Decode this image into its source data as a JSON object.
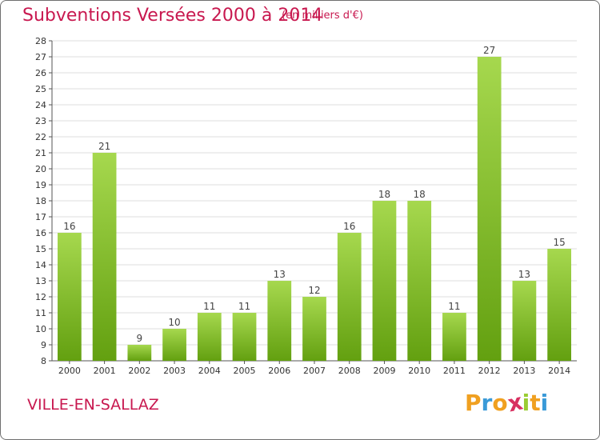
{
  "header": {
    "title": "Subventions Versées 2000 à 2014",
    "unit": "(en milliers d'€)"
  },
  "footer": {
    "commune": "VILLE-EN-SALLAZ",
    "brand_letters": [
      {
        "char": "P",
        "color": "#f0a020"
      },
      {
        "char": "r",
        "color": "#3a9ad8"
      },
      {
        "char": "o",
        "color": "#f0a020"
      },
      {
        "char": "x",
        "color": "#d83060"
      },
      {
        "char": "i",
        "color": "#9acd32"
      },
      {
        "char": "t",
        "color": "#f0a020"
      },
      {
        "char": "i",
        "color": "#3a9ad8"
      }
    ]
  },
  "colors": {
    "bar_top": "#a6d84e",
    "bar_bottom": "#63a010",
    "title": "#c8184f"
  },
  "chart_data": {
    "type": "bar",
    "categories": [
      "2000",
      "2001",
      "2002",
      "2003",
      "2004",
      "2005",
      "2006",
      "2007",
      "2008",
      "2009",
      "2010",
      "2011",
      "2012",
      "2013",
      "2014"
    ],
    "values": [
      16,
      21,
      9,
      10,
      11,
      11,
      13,
      12,
      16,
      18,
      18,
      11,
      27,
      13,
      15
    ],
    "title": "Subventions Versées 2000 à 2014",
    "xlabel": "",
    "ylabel": "",
    "ylim": [
      8,
      28
    ],
    "yticks": [
      8,
      9,
      10,
      11,
      12,
      13,
      14,
      15,
      16,
      17,
      18,
      19,
      20,
      21,
      22,
      23,
      24,
      25,
      26,
      27,
      28
    ],
    "grid": true,
    "data_labels": true
  }
}
